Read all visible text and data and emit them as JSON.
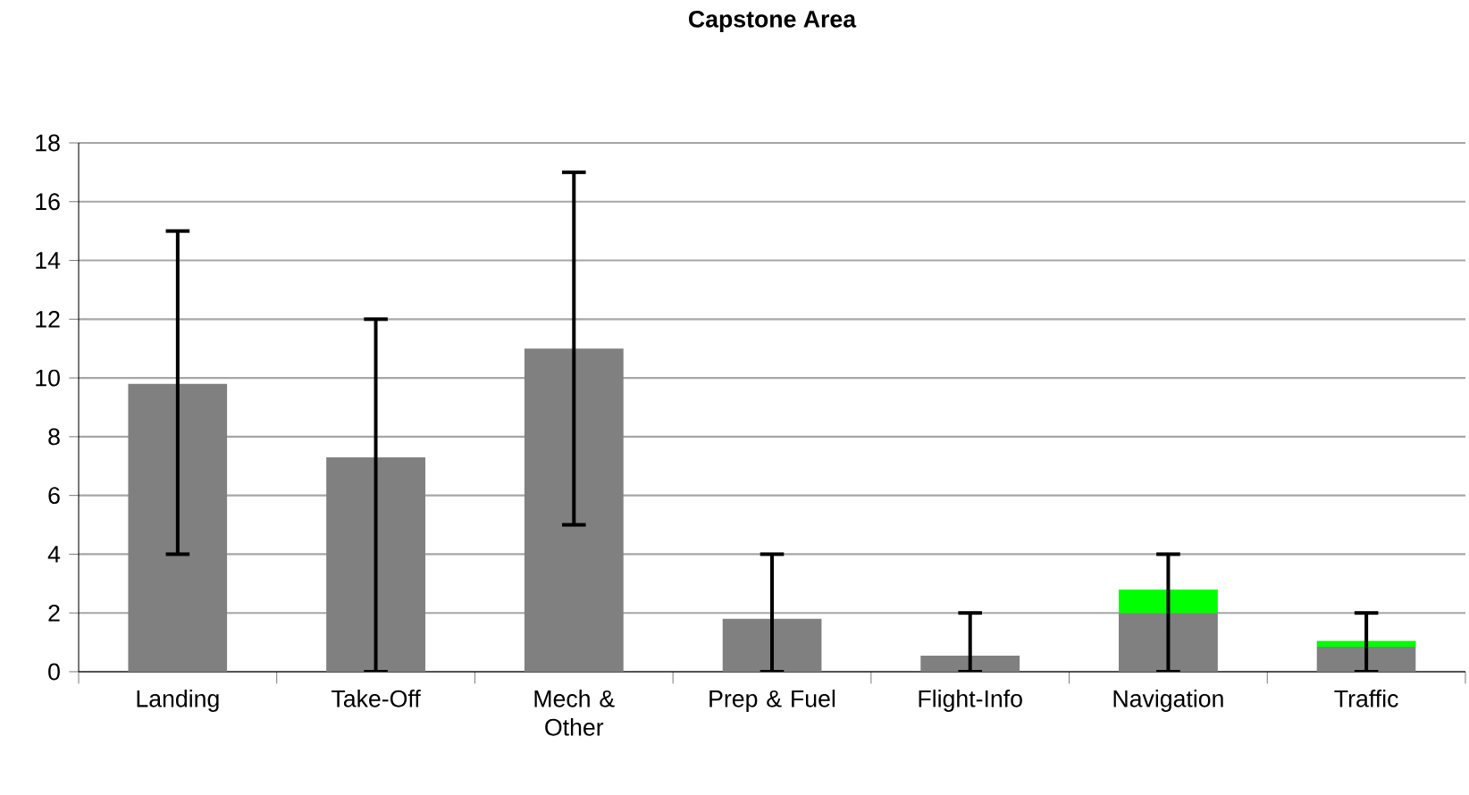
{
  "chart_data": {
    "type": "bar",
    "title": "Capstone Area",
    "stacked": true,
    "categories": [
      "Landing",
      "Take-Off",
      "Mech & Other",
      "Prep & Fuel",
      "Flight-Info",
      "Navigation",
      "Traffic"
    ],
    "series": [
      {
        "color": "#808080",
        "values": [
          9.8,
          7.3,
          11,
          1.8,
          0.55,
          2.0,
          0.85
        ],
        "errors": [
          [
            4,
            15
          ],
          [
            0,
            12
          ],
          [
            5,
            17
          ],
          [
            0,
            4
          ],
          [
            0,
            2
          ],
          [
            0,
            4
          ],
          [
            0,
            2
          ]
        ]
      },
      {
        "color": "#00ff00",
        "values": [
          null,
          null,
          null,
          null,
          null,
          0.8,
          0.2
        ]
      }
    ],
    "ylim": [
      0,
      18
    ],
    "yticks": [
      0,
      2,
      4,
      6,
      8,
      10,
      12,
      14,
      16,
      18
    ],
    "grid": "y"
  }
}
